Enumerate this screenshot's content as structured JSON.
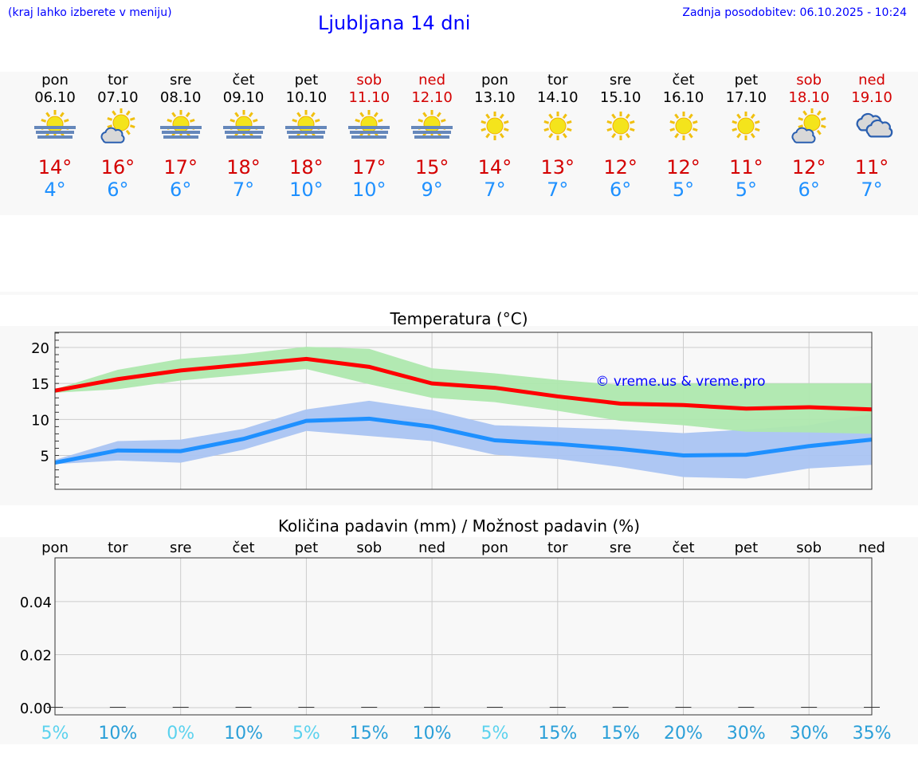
{
  "header": {
    "note": "(kraj lahko izberete v meniju)",
    "title": "Ljubljana 14 dni",
    "updated": "Zadnja posodobitev: 06.10.2025 - 10:24"
  },
  "days": [
    {
      "day": "pon",
      "date": "06.10",
      "icon": "sun-fog-icon",
      "max": "14°",
      "min": "4°",
      "weekend": false
    },
    {
      "day": "tor",
      "date": "07.10",
      "icon": "sun-cloud-icon",
      "max": "16°",
      "min": "6°",
      "weekend": false
    },
    {
      "day": "sre",
      "date": "08.10",
      "icon": "sun-fog-icon",
      "max": "17°",
      "min": "6°",
      "weekend": false
    },
    {
      "day": "čet",
      "date": "09.10",
      "icon": "sun-fog-icon",
      "max": "18°",
      "min": "7°",
      "weekend": false
    },
    {
      "day": "pet",
      "date": "10.10",
      "icon": "sun-fog-icon",
      "max": "18°",
      "min": "10°",
      "weekend": false
    },
    {
      "day": "sob",
      "date": "11.10",
      "icon": "sun-fog-icon",
      "max": "17°",
      "min": "10°",
      "weekend": true
    },
    {
      "day": "ned",
      "date": "12.10",
      "icon": "sun-fog-icon",
      "max": "15°",
      "min": "9°",
      "weekend": true
    },
    {
      "day": "pon",
      "date": "13.10",
      "icon": "sun-icon",
      "max": "14°",
      "min": "7°",
      "weekend": false
    },
    {
      "day": "tor",
      "date": "14.10",
      "icon": "sun-icon",
      "max": "13°",
      "min": "7°",
      "weekend": false
    },
    {
      "day": "sre",
      "date": "15.10",
      "icon": "sun-icon",
      "max": "12°",
      "min": "6°",
      "weekend": false
    },
    {
      "day": "čet",
      "date": "16.10",
      "icon": "sun-icon",
      "max": "12°",
      "min": "5°",
      "weekend": false
    },
    {
      "day": "pet",
      "date": "17.10",
      "icon": "sun-icon",
      "max": "11°",
      "min": "5°",
      "weekend": false
    },
    {
      "day": "sob",
      "date": "18.10",
      "icon": "sun-cloud-icon",
      "max": "12°",
      "min": "6°",
      "weekend": true
    },
    {
      "day": "ned",
      "date": "19.10",
      "icon": "cloud-icon",
      "max": "11°",
      "min": "7°",
      "weekend": true
    }
  ],
  "colors": {
    "max": "#ff0000",
    "min": "#1e90ff",
    "max_band": "#aee8ae",
    "min_band": "#aac4f2",
    "weekend": "#d40000",
    "prob_low": "#5bd2ee",
    "prob": "#2a9fd8"
  },
  "chart_data": [
    {
      "type": "line",
      "title": "Temperatura (°C)",
      "ylim": [
        0.3,
        22.1
      ],
      "yticks": [
        "5",
        "10",
        "15",
        "20"
      ],
      "grid": true,
      "x": [
        "06.10",
        "07.10",
        "08.10",
        "09.10",
        "10.10",
        "11.10",
        "12.10",
        "13.10",
        "14.10",
        "15.10",
        "16.10",
        "17.10",
        "18.10",
        "19.10"
      ],
      "series": [
        {
          "role": "max",
          "values": [
            14,
            15.6,
            16.8,
            17.6,
            18.4,
            17.3,
            15,
            14.4,
            13.2,
            12.2,
            12,
            11.5,
            11.7,
            11.4
          ],
          "band_high": [
            14.2,
            16.9,
            18.4,
            19.1,
            20.1,
            19.8,
            17.1,
            16.4,
            15.5,
            14.8,
            15,
            15,
            15,
            15
          ],
          "band_low": [
            13.7,
            14.2,
            15.4,
            16.2,
            17,
            14.9,
            13,
            12.4,
            11.2,
            9.8,
            9.2,
            8.3,
            8.2,
            8.0
          ]
        },
        {
          "role": "min",
          "values": [
            4,
            5.7,
            5.6,
            7.3,
            9.8,
            10.1,
            9,
            7.1,
            6.6,
            5.9,
            5,
            5.1,
            6.3,
            7.2
          ],
          "band_high": [
            4.4,
            7,
            7.2,
            8.7,
            11.4,
            12.6,
            11.3,
            9.2,
            8.9,
            8.6,
            8.1,
            8.6,
            9.2,
            10.8
          ],
          "band_low": [
            3.8,
            4.3,
            4,
            5.8,
            8.4,
            7.7,
            7,
            5.1,
            4.5,
            3.4,
            2,
            1.8,
            3.2,
            3.7
          ]
        }
      ],
      "annotation": "© vreme.us & vreme.pro"
    },
    {
      "type": "bar",
      "title": "Količina padavin (mm) / Možnost padavin (%)",
      "ylim": [
        -0.0027,
        0.0565
      ],
      "yticks": [
        "0.00",
        "0.02",
        "0.04"
      ],
      "grid": true,
      "categories": [
        "pon",
        "tor",
        "sre",
        "čet",
        "pet",
        "sob",
        "ned",
        "pon",
        "tor",
        "sre",
        "čet",
        "pet",
        "sob",
        "ned"
      ],
      "values": [
        0,
        0,
        0,
        0,
        0,
        0,
        0,
        0,
        0,
        0,
        0,
        0,
        0,
        0
      ],
      "probability": [
        "5%",
        "10%",
        "0%",
        "10%",
        "5%",
        "15%",
        "10%",
        "5%",
        "15%",
        "15%",
        "20%",
        "30%",
        "30%",
        "35%"
      ]
    }
  ]
}
